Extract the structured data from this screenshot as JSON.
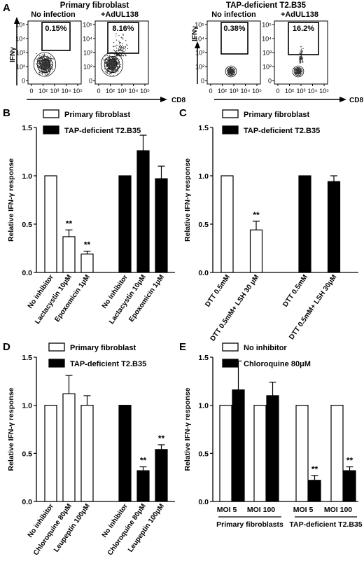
{
  "panel_labels": [
    "A",
    "B",
    "C",
    "D",
    "E"
  ],
  "flow": {
    "y_axis_label": "IFNγ",
    "x_axis_label": "CD8",
    "y_ticks": [
      "10⁵",
      "10⁴",
      "10³",
      "10²",
      "0"
    ],
    "x_ticks": [
      "0",
      "10²",
      "10³",
      "10⁴",
      "10⁵"
    ],
    "groups": [
      {
        "title": "Primary fibroblast",
        "plots": [
          {
            "label": "No infection",
            "percent": "0.15%"
          },
          {
            "label": "+AdUL138",
            "percent": "8.16%"
          }
        ]
      },
      {
        "title": "TAP-deficient T2.B35",
        "plots": [
          {
            "label": "No infection",
            "percent": "0.38%"
          },
          {
            "label": "+AdUL138",
            "percent": "16.2%"
          }
        ]
      }
    ]
  },
  "colors": {
    "white_bar": "#ffffff",
    "black_bar": "#000000"
  },
  "chart_data": [
    {
      "panel": "B",
      "type": "bar",
      "ylabel": "Relative IFN-γ response",
      "ylim": [
        0,
        1.5
      ],
      "y_ticks": [
        "0.0",
        "0.5",
        "1.0",
        "1.5"
      ],
      "legend": [
        "Primary fibroblast",
        "TAP-deficient T2.B35"
      ],
      "categories": [
        "No inhibitor",
        "Lactacystin 10μM",
        "Epoxomicin 1μM",
        "No inhibitor",
        "Lactacystin 10μM",
        "Epoxomicin 1μM"
      ],
      "values": [
        1.0,
        0.37,
        0.19,
        1.0,
        1.26,
        0.97
      ],
      "errors": [
        0,
        0.07,
        0.03,
        0,
        0.16,
        0.13
      ],
      "fills": [
        "white",
        "white",
        "white",
        "black",
        "black",
        "black"
      ],
      "significance": [
        "",
        "**",
        "**",
        "",
        "",
        ""
      ]
    },
    {
      "panel": "C",
      "type": "bar",
      "ylabel": "Relative IFN-γ response",
      "ylim": [
        0,
        1.5
      ],
      "y_ticks": [
        "0.0",
        "0.5",
        "1.0",
        "1.5"
      ],
      "legend": [
        "Primary fibroblast",
        "TAP-deficient T2.B35"
      ],
      "categories": [
        "DTT 0.5mM",
        "DTT 0.5mM+ LSH 30 μM",
        "DTT 0.5mM",
        "DTT 0.5mM+ LSH 30μM"
      ],
      "values": [
        1.0,
        0.44,
        1.0,
        0.94
      ],
      "errors": [
        0,
        0.09,
        0,
        0.06
      ],
      "fills": [
        "white",
        "white",
        "black",
        "black"
      ],
      "significance": [
        "",
        "**",
        "",
        ""
      ]
    },
    {
      "panel": "D",
      "type": "bar",
      "ylabel": "Relative IFN-γ response",
      "ylim": [
        0,
        1.5
      ],
      "y_ticks": [
        "0.0",
        "0.5",
        "1.0",
        "1.5"
      ],
      "legend": [
        "Primary fibroblast",
        "TAP-deficient T2.B35"
      ],
      "categories": [
        "No inhibitor",
        "Chloroquine 80μM",
        "Leupeptin 100μM",
        "No inhibitor",
        "Chloroquine 80μM",
        "Leupeptin 100μM"
      ],
      "values": [
        1.0,
        1.12,
        1.0,
        1.0,
        0.32,
        0.54
      ],
      "errors": [
        0,
        0.19,
        0.1,
        0,
        0.04,
        0.05
      ],
      "fills": [
        "white",
        "white",
        "white",
        "black",
        "black",
        "black"
      ],
      "significance": [
        "",
        "",
        "",
        "",
        "**",
        "**"
      ]
    },
    {
      "panel": "E",
      "type": "bar",
      "ylabel": "Relative IFN-γ response",
      "ylim": [
        0,
        1.5
      ],
      "y_ticks": [
        "0.0",
        "0.5",
        "1.0",
        "1.5"
      ],
      "legend": [
        "No inhibitor",
        "Chloroquine 80μM"
      ],
      "categories": [
        "MOI 5",
        "MOI 100",
        "MOI 5",
        "MOI 100"
      ],
      "groups": [
        "Primary fibroblasts",
        "TAP-deficient T2.B35"
      ],
      "series": [
        {
          "name": "No inhibitor",
          "values": [
            1.0,
            1.0,
            1.0,
            1.0
          ],
          "errors": [
            0,
            0,
            0,
            0
          ]
        },
        {
          "name": "Chloroquine 80μM",
          "values": [
            1.16,
            1.1,
            0.22,
            0.32
          ],
          "errors": [
            0.3,
            0.14,
            0.05,
            0.04
          ]
        }
      ],
      "significance": [
        "",
        "",
        "**",
        "**"
      ]
    }
  ]
}
